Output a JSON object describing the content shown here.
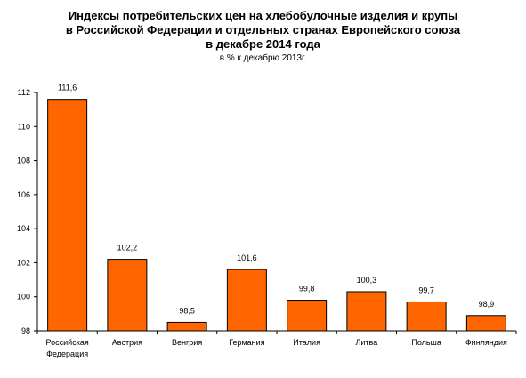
{
  "title_lines": [
    "Индексы потребительских цен на хлебобулочные изделия и крупы",
    "в Российской Федерации и отдельных странах Европейского союза",
    "в декабре 2014 года"
  ],
  "subtitle": "в % к декабрю 2013г.",
  "colors": {
    "bar": "#FF6600",
    "bar_stroke": "#000000",
    "axis": "#000000"
  },
  "chart_data": {
    "type": "bar",
    "title": "Индексы потребительских цен на хлебобулочные изделия и крупы в Российской Федерации и отдельных странах Европейского союза в декабре 2014 года",
    "subtitle": "в % к декабрю 2013г.",
    "xlabel": "",
    "ylabel": "",
    "categories": [
      [
        "Российская",
        "Федерация"
      ],
      [
        "Австрия"
      ],
      [
        "Венгрия"
      ],
      [
        "Германия"
      ],
      [
        "Италия"
      ],
      [
        "Литва"
      ],
      [
        "Польша"
      ],
      [
        "Финляндия"
      ]
    ],
    "values": [
      111.6,
      102.2,
      98.5,
      101.6,
      99.8,
      100.3,
      99.7,
      98.9
    ],
    "value_labels": [
      "111,6",
      "102,2",
      "98,5",
      "101,6",
      "99,8",
      "100,3",
      "99,7",
      "98,9"
    ],
    "ylim": [
      98,
      112
    ],
    "yticks": [
      98,
      100,
      102,
      104,
      106,
      108,
      110,
      112
    ],
    "grid": false,
    "legend": "none"
  }
}
